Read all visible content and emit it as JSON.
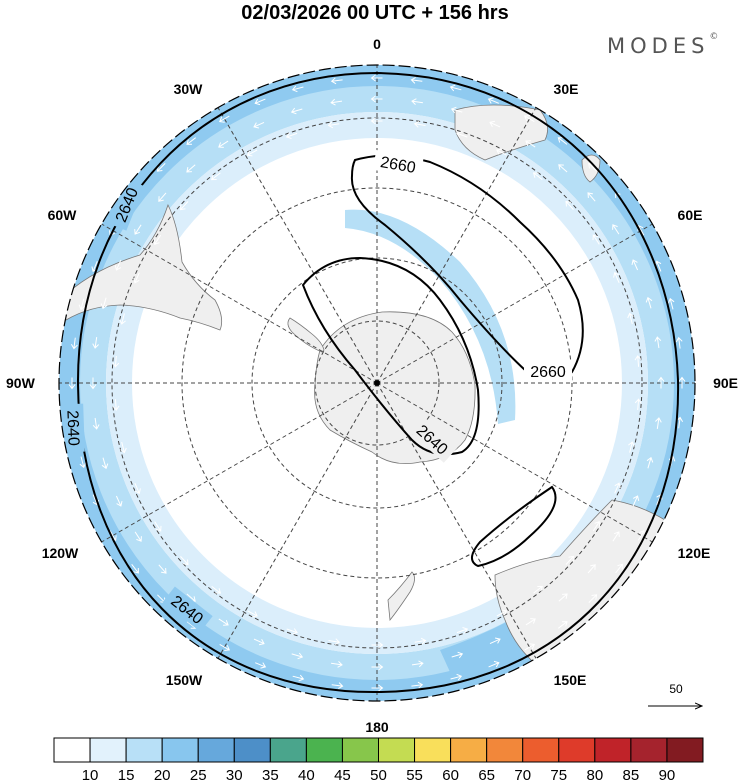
{
  "title": "02/03/2026  00 UTC  + 156 hrs",
  "brand": {
    "name": "MODES",
    "mark": "©"
  },
  "map": {
    "projection": "south-polar-stereographic",
    "longitude_labels": [
      "0",
      "30E",
      "60E",
      "90E",
      "120E",
      "150E",
      "180",
      "150W",
      "120W",
      "90W",
      "60W",
      "30W"
    ],
    "contours": [
      {
        "label": "2640",
        "kind": "polar-ring"
      },
      {
        "label": "2640",
        "kind": "polar-ring"
      },
      {
        "label": "2640",
        "kind": "polar-ring"
      },
      {
        "label": "2640",
        "kind": "polar-ring"
      },
      {
        "label": "2640",
        "kind": "antarctic-lobe"
      },
      {
        "label": "2660",
        "kind": "closed-contour"
      },
      {
        "label": "2660",
        "kind": "closed-contour"
      }
    ],
    "wind_reference": {
      "value": "50"
    },
    "colors": {
      "land": "#efefef",
      "wind_band_1": "#dbeefb",
      "wind_band_2": "#b6dff6",
      "wind_band_3": "#8fcaf0"
    }
  },
  "colorbar": {
    "ticks": [
      "10",
      "15",
      "20",
      "25",
      "30",
      "35",
      "40",
      "45",
      "50",
      "55",
      "60",
      "65",
      "70",
      "75",
      "80",
      "85",
      "90"
    ],
    "colors": [
      "#ffffff",
      "#e2f2fc",
      "#b8e0f7",
      "#88c6ee",
      "#66a8dc",
      "#4d8fc8",
      "#4aa58c",
      "#4bb34f",
      "#87c64b",
      "#c4dc52",
      "#f9df5b",
      "#f6ad45",
      "#f2873a",
      "#ec5d2e",
      "#de3b2a",
      "#c02329",
      "#a5232d",
      "#821b21"
    ]
  }
}
